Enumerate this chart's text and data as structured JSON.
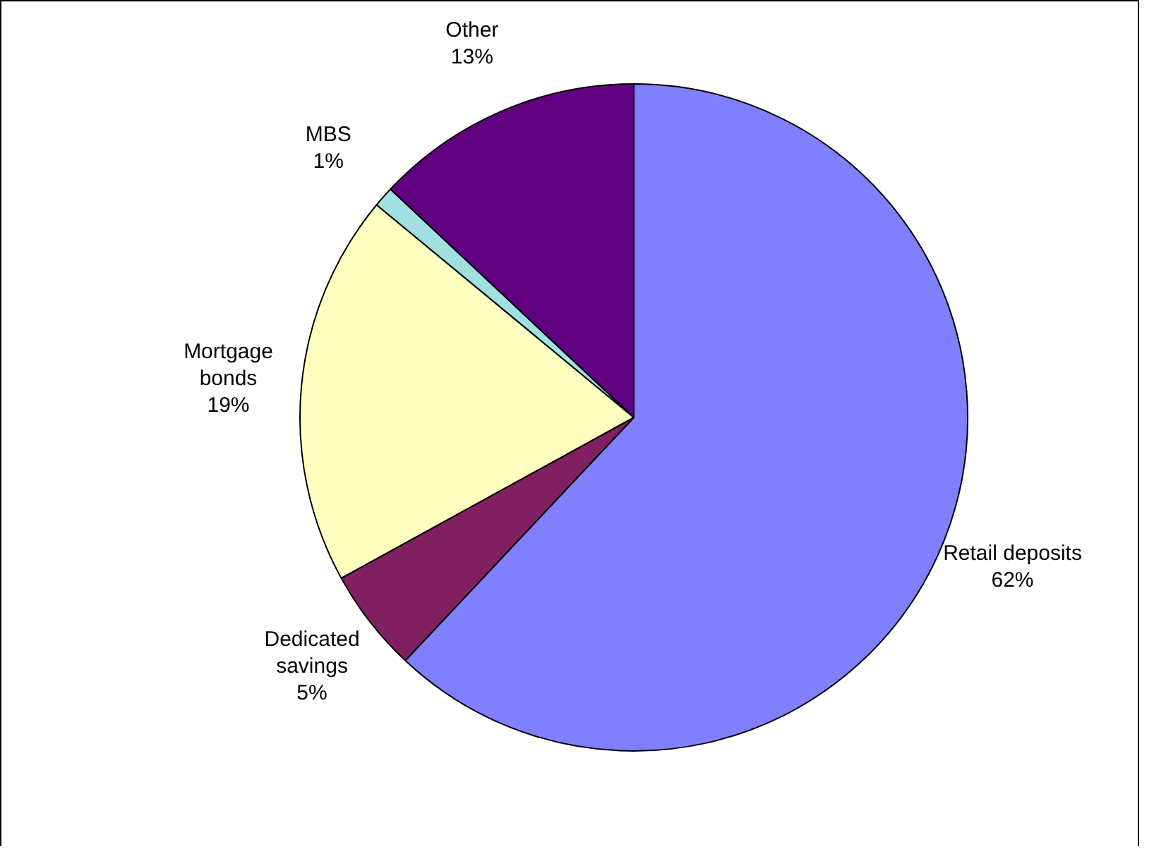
{
  "chart_data": {
    "type": "pie",
    "categories": [
      "Retail deposits",
      "Dedicated savings",
      "Mortgage bonds",
      "MBS",
      "Other"
    ],
    "values": [
      62,
      5,
      19,
      1,
      13
    ],
    "value_labels": [
      "62%",
      "5%",
      "19%",
      "1%",
      "13%"
    ],
    "colors": [
      "#8080ff",
      "#802060",
      "#ffffc0",
      "#a0e0e0",
      "#600080"
    ],
    "legend": false
  }
}
